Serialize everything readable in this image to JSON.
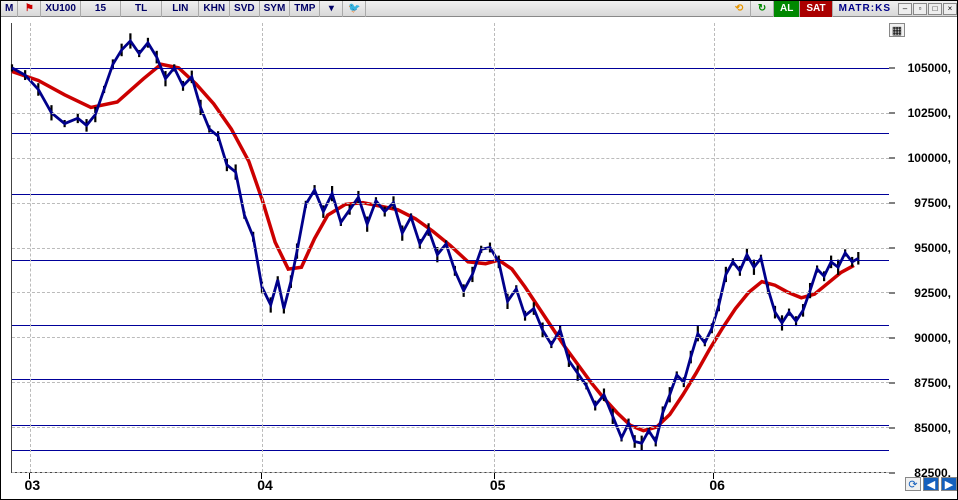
{
  "toolbar": {
    "m_label": "M",
    "symbol": "XU100",
    "interval": "15",
    "currency": "TL",
    "lin": "LIN",
    "khn": "KHN",
    "svd": "SVD",
    "sym": "SYM",
    "tmp": "TMP",
    "al": "AL",
    "sat": "SAT",
    "brand": "MATR:KS"
  },
  "chart": {
    "type": "candlestick-with-ma",
    "ylim": [
      82500,
      107500
    ],
    "y_ticks": [
      82500,
      85000,
      87500,
      90000,
      92500,
      95000,
      97500,
      100000,
      102500,
      105000
    ],
    "y_label_suffix": ",",
    "x_ticks": [
      {
        "pos": 0.02,
        "label": "03"
      },
      {
        "pos": 0.285,
        "label": "04"
      },
      {
        "pos": 0.55,
        "label": "05"
      },
      {
        "pos": 0.8,
        "label": "06"
      }
    ],
    "horizontal_support_lines": [
      83700,
      85100,
      87700,
      90700,
      94300,
      98000,
      101400,
      105000
    ],
    "colors": {
      "price_body": "#000000",
      "price_line": "#00008b",
      "ma_fast": "#00008b",
      "ma_slow": "#cc0000",
      "support_line": "#000099",
      "grid": "#bbbbbb",
      "background": "#ffffff"
    },
    "ma_slow": [
      [
        0.0,
        104800
      ],
      [
        0.03,
        104300
      ],
      [
        0.06,
        103500
      ],
      [
        0.09,
        102800
      ],
      [
        0.12,
        103100
      ],
      [
        0.15,
        104400
      ],
      [
        0.17,
        105200
      ],
      [
        0.19,
        105000
      ],
      [
        0.21,
        104100
      ],
      [
        0.23,
        103000
      ],
      [
        0.25,
        101600
      ],
      [
        0.27,
        99800
      ],
      [
        0.285,
        97700
      ],
      [
        0.3,
        95300
      ],
      [
        0.315,
        93800
      ],
      [
        0.33,
        93900
      ],
      [
        0.345,
        95500
      ],
      [
        0.36,
        96800
      ],
      [
        0.38,
        97400
      ],
      [
        0.4,
        97500
      ],
      [
        0.42,
        97300
      ],
      [
        0.44,
        97100
      ],
      [
        0.46,
        96600
      ],
      [
        0.48,
        95900
      ],
      [
        0.5,
        95100
      ],
      [
        0.52,
        94200
      ],
      [
        0.54,
        94100
      ],
      [
        0.555,
        94300
      ],
      [
        0.57,
        93800
      ],
      [
        0.585,
        92800
      ],
      [
        0.6,
        91700
      ],
      [
        0.615,
        90600
      ],
      [
        0.63,
        89500
      ],
      [
        0.645,
        88500
      ],
      [
        0.66,
        87500
      ],
      [
        0.675,
        86600
      ],
      [
        0.69,
        85800
      ],
      [
        0.705,
        85100
      ],
      [
        0.72,
        84800
      ],
      [
        0.735,
        85000
      ],
      [
        0.75,
        85700
      ],
      [
        0.765,
        86800
      ],
      [
        0.78,
        88000
      ],
      [
        0.795,
        89300
      ],
      [
        0.81,
        90500
      ],
      [
        0.825,
        91600
      ],
      [
        0.84,
        92500
      ],
      [
        0.855,
        93100
      ],
      [
        0.87,
        92900
      ],
      [
        0.885,
        92500
      ],
      [
        0.9,
        92200
      ],
      [
        0.915,
        92400
      ],
      [
        0.93,
        93000
      ],
      [
        0.945,
        93600
      ],
      [
        0.96,
        94000
      ]
    ],
    "price": [
      [
        0.0,
        105000
      ],
      [
        0.015,
        104600
      ],
      [
        0.03,
        103800
      ],
      [
        0.045,
        102500
      ],
      [
        0.06,
        101900
      ],
      [
        0.075,
        102200
      ],
      [
        0.085,
        101800
      ],
      [
        0.095,
        102400
      ],
      [
        0.105,
        103800
      ],
      [
        0.115,
        105200
      ],
      [
        0.125,
        106000
      ],
      [
        0.135,
        106500
      ],
      [
        0.145,
        105800
      ],
      [
        0.155,
        106400
      ],
      [
        0.165,
        105600
      ],
      [
        0.175,
        104400
      ],
      [
        0.185,
        105000
      ],
      [
        0.195,
        104000
      ],
      [
        0.205,
        104500
      ],
      [
        0.215,
        102800
      ],
      [
        0.225,
        101600
      ],
      [
        0.235,
        101200
      ],
      [
        0.245,
        99600
      ],
      [
        0.255,
        99200
      ],
      [
        0.265,
        96800
      ],
      [
        0.275,
        95600
      ],
      [
        0.285,
        92800
      ],
      [
        0.295,
        91800
      ],
      [
        0.303,
        93200
      ],
      [
        0.31,
        91600
      ],
      [
        0.318,
        93100
      ],
      [
        0.325,
        94800
      ],
      [
        0.335,
        97400
      ],
      [
        0.345,
        98200
      ],
      [
        0.355,
        97000
      ],
      [
        0.365,
        98000
      ],
      [
        0.375,
        96400
      ],
      [
        0.385,
        97100
      ],
      [
        0.395,
        97800
      ],
      [
        0.405,
        96300
      ],
      [
        0.415,
        97600
      ],
      [
        0.425,
        97000
      ],
      [
        0.435,
        97500
      ],
      [
        0.445,
        95800
      ],
      [
        0.455,
        96700
      ],
      [
        0.465,
        95200
      ],
      [
        0.475,
        96000
      ],
      [
        0.485,
        94600
      ],
      [
        0.495,
        95200
      ],
      [
        0.505,
        93700
      ],
      [
        0.515,
        92600
      ],
      [
        0.525,
        93500
      ],
      [
        0.535,
        94900
      ],
      [
        0.545,
        95000
      ],
      [
        0.555,
        94200
      ],
      [
        0.565,
        92000
      ],
      [
        0.575,
        92700
      ],
      [
        0.585,
        91200
      ],
      [
        0.595,
        91600
      ],
      [
        0.605,
        90400
      ],
      [
        0.615,
        89600
      ],
      [
        0.625,
        90400
      ],
      [
        0.635,
        88700
      ],
      [
        0.645,
        88000
      ],
      [
        0.655,
        87300
      ],
      [
        0.665,
        86200
      ],
      [
        0.675,
        86800
      ],
      [
        0.685,
        85600
      ],
      [
        0.695,
        84400
      ],
      [
        0.703,
        85200
      ],
      [
        0.71,
        84200
      ],
      [
        0.718,
        84100
      ],
      [
        0.726,
        84800
      ],
      [
        0.734,
        84200
      ],
      [
        0.742,
        85800
      ],
      [
        0.75,
        86800
      ],
      [
        0.758,
        87900
      ],
      [
        0.766,
        87500
      ],
      [
        0.774,
        88900
      ],
      [
        0.782,
        90200
      ],
      [
        0.79,
        89700
      ],
      [
        0.798,
        90500
      ],
      [
        0.806,
        91800
      ],
      [
        0.814,
        93500
      ],
      [
        0.822,
        94200
      ],
      [
        0.83,
        93700
      ],
      [
        0.838,
        94600
      ],
      [
        0.846,
        93900
      ],
      [
        0.854,
        94400
      ],
      [
        0.862,
        92700
      ],
      [
        0.87,
        91400
      ],
      [
        0.878,
        90800
      ],
      [
        0.886,
        91400
      ],
      [
        0.894,
        90900
      ],
      [
        0.902,
        91500
      ],
      [
        0.91,
        92600
      ],
      [
        0.918,
        93800
      ],
      [
        0.926,
        93400
      ],
      [
        0.934,
        94200
      ],
      [
        0.942,
        93900
      ],
      [
        0.95,
        94700
      ],
      [
        0.958,
        94200
      ],
      [
        0.965,
        94400
      ]
    ]
  }
}
